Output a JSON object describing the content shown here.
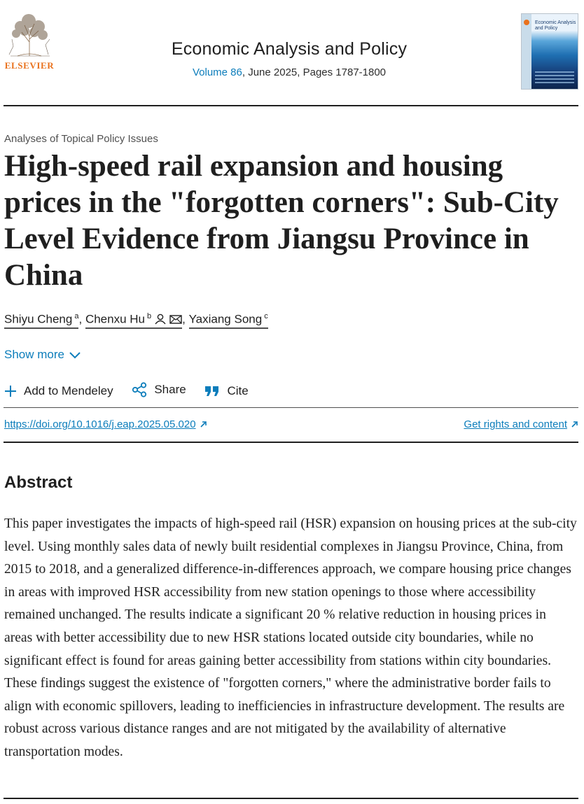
{
  "journal": {
    "publisher": "ELSEVIER",
    "title": "Economic Analysis and Policy",
    "volume": "Volume 86",
    "issue_rest": ", June 2025, Pages 1787-1800",
    "cover_title": "Economic Analysis and Policy"
  },
  "article": {
    "section": "Analyses of Topical Policy Issues",
    "title": "High-speed rail expansion and housing prices in the \"forgotten corners\": Sub-City Level Evidence from Jiangsu Province in China",
    "authors": [
      {
        "name": "Shiyu Cheng",
        "affiliation": "a"
      },
      {
        "name": "Chenxu Hu",
        "affiliation": "b",
        "icons": [
          "person-icon",
          "envelope-icon"
        ]
      },
      {
        "name": "Yaxiang Song",
        "affiliation": "c"
      }
    ],
    "separator": ",",
    "show_more": "Show more"
  },
  "toolbar": {
    "mendeley": "Add to Mendeley",
    "share": "Share",
    "cite": "Cite"
  },
  "links": {
    "doi": "https://doi.org/10.1016/j.eap.2025.05.020",
    "rights": "Get rights and content"
  },
  "abstract": {
    "heading": "Abstract",
    "text": "This paper investigates the impacts of high-speed rail (HSR) expansion on housing prices at the sub-city level. Using monthly sales data of newly built residential complexes in Jiangsu Province, China, from 2015 to 2018, and a generalized difference-in-differences approach, we compare housing price changes in areas with improved HSR accessibility from new station openings to those where accessibility remained unchanged. The results indicate a significant 20 % relative reduction in housing prices in areas with better accessibility due to new HSR stations located outside city boundaries, while no significant effect is found for areas gaining better accessibility from stations within city boundaries. These findings suggest the existence of \"forgotten corners,\" where the administrative border fails to align with economic spillovers, leading to inefficiencies in infrastructure development. The results are robust across various distance ranges and are not mitigated by the availability of alternative transportation modes."
  },
  "colors": {
    "link": "#0c7dbb",
    "publisher_orange": "#e9711c",
    "text": "#1f1f1f"
  }
}
